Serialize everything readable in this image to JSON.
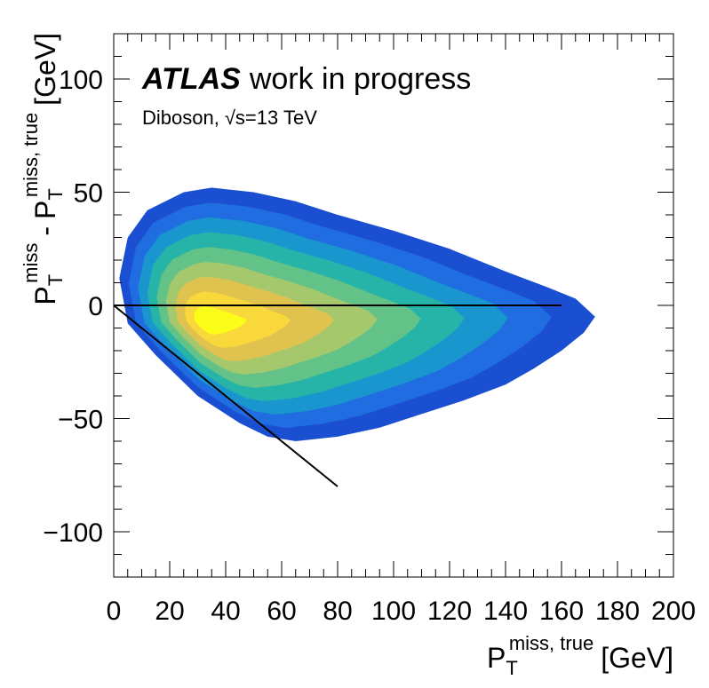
{
  "chart_data": {
    "type": "heatmap",
    "title": "",
    "label_atlas": "ATLAS",
    "label_status": "work in progress",
    "label_sample": "Diboson,",
    "label_energy_sqrt": "√s",
    "label_energy_value": "=13 TeV",
    "xlabel_main": "P",
    "xlabel_sub": "T",
    "xlabel_sup": "miss, true",
    "xlabel_unit": "[GeV]",
    "ylabel_main_a": "P",
    "ylabel_sub_a": "T",
    "ylabel_sup_a": "miss",
    "ylabel_minus": "-",
    "ylabel_main_b": "P",
    "ylabel_sub_b": "T",
    "ylabel_sup_b": "miss, true",
    "ylabel_unit": "[GeV]",
    "xlim": [
      0,
      200
    ],
    "ylim": [
      -120,
      120
    ],
    "x_ticks": [
      0,
      20,
      40,
      60,
      80,
      100,
      120,
      140,
      160,
      180,
      200
    ],
    "x_tick_labels": [
      "0",
      "20",
      "40",
      "60",
      "80",
      "100",
      "120",
      "140",
      "160",
      "180",
      "200"
    ],
    "y_ticks": [
      -100,
      -50,
      0,
      50,
      100
    ],
    "y_tick_labels": [
      "−100",
      "−50",
      "0",
      "50",
      "100"
    ],
    "grid": false,
    "colormap": [
      "#1b4fd1",
      "#1f6de0",
      "#1a96cf",
      "#26b3a8",
      "#63c287",
      "#a6c86d",
      "#e0c24f",
      "#f8d83a",
      "#fdfd1a"
    ],
    "peak": {
      "x": 32,
      "y": -7
    },
    "distribution_outline": [
      [
        2,
        12
      ],
      [
        5,
        30
      ],
      [
        12,
        42
      ],
      [
        25,
        50
      ],
      [
        35,
        52
      ],
      [
        50,
        50
      ],
      [
        65,
        46
      ],
      [
        80,
        40
      ],
      [
        100,
        33
      ],
      [
        120,
        25
      ],
      [
        140,
        15
      ],
      [
        155,
        8
      ],
      [
        165,
        3
      ],
      [
        172,
        -5
      ],
      [
        168,
        -12
      ],
      [
        160,
        -20
      ],
      [
        150,
        -28
      ],
      [
        140,
        -35
      ],
      [
        125,
        -42
      ],
      [
        110,
        -48
      ],
      [
        95,
        -54
      ],
      [
        80,
        -58
      ],
      [
        65,
        -60
      ],
      [
        55,
        -58
      ],
      [
        45,
        -52
      ],
      [
        30,
        -40
      ],
      [
        15,
        -22
      ],
      [
        5,
        -8
      ]
    ],
    "lines": [
      {
        "x": [
          0,
          160
        ],
        "y": [
          0,
          0
        ],
        "color": "#000000"
      },
      {
        "x": [
          0,
          80
        ],
        "y": [
          0,
          -80
        ],
        "color": "#000000"
      }
    ]
  }
}
